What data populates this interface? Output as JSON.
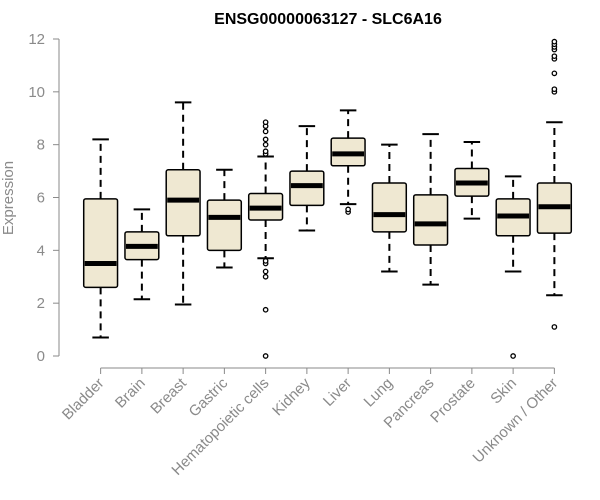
{
  "chart_data": {
    "type": "boxplot",
    "title": "ENSG00000063127 - SLC6A16",
    "xlabel": "",
    "ylabel": "Expression",
    "ylim": [
      0,
      12
    ],
    "yticks": [
      0,
      2,
      4,
      6,
      8,
      10,
      12
    ],
    "categories": [
      "Bladder",
      "Brain",
      "Breast",
      "Gastric",
      "Hematopoietic cells",
      "Kidney",
      "Liver",
      "Lung",
      "Pancreas",
      "Prostate",
      "Skin",
      "Unknown / Other"
    ],
    "boxes": [
      {
        "name": "Bladder",
        "whisker_low": 0.7,
        "q1": 2.6,
        "median": 3.5,
        "q3": 5.95,
        "whisker_high": 8.2,
        "outliers": []
      },
      {
        "name": "Brain",
        "whisker_low": 2.15,
        "q1": 3.65,
        "median": 4.15,
        "q3": 4.7,
        "whisker_high": 5.55,
        "outliers": []
      },
      {
        "name": "Breast",
        "whisker_low": 1.95,
        "q1": 4.55,
        "median": 5.9,
        "q3": 7.05,
        "whisker_high": 9.6,
        "outliers": []
      },
      {
        "name": "Gastric",
        "whisker_low": 3.35,
        "q1": 4.0,
        "median": 5.25,
        "q3": 5.9,
        "whisker_high": 7.05,
        "outliers": []
      },
      {
        "name": "Hematopoietic cells",
        "whisker_low": 3.7,
        "q1": 5.15,
        "median": 5.6,
        "q3": 6.15,
        "whisker_high": 7.55,
        "outliers": [
          0.0,
          1.75,
          3.0,
          3.2,
          3.5,
          3.6,
          7.65,
          7.75,
          8.0,
          8.2,
          8.5,
          8.7,
          8.85
        ]
      },
      {
        "name": "Kidney",
        "whisker_low": 4.75,
        "q1": 5.7,
        "median": 6.45,
        "q3": 7.0,
        "whisker_high": 8.7,
        "outliers": []
      },
      {
        "name": "Liver",
        "whisker_low": 5.75,
        "q1": 7.2,
        "median": 7.65,
        "q3": 8.25,
        "whisker_high": 9.3,
        "outliers": [
          5.45,
          5.55
        ]
      },
      {
        "name": "Lung",
        "whisker_low": 3.2,
        "q1": 4.7,
        "median": 5.35,
        "q3": 6.55,
        "whisker_high": 8.0,
        "outliers": []
      },
      {
        "name": "Pancreas",
        "whisker_low": 2.7,
        "q1": 4.2,
        "median": 5.0,
        "q3": 6.1,
        "whisker_high": 8.4,
        "outliers": []
      },
      {
        "name": "Prostate",
        "whisker_low": 5.2,
        "q1": 6.05,
        "median": 6.55,
        "q3": 7.1,
        "whisker_high": 8.1,
        "outliers": []
      },
      {
        "name": "Skin",
        "whisker_low": 3.2,
        "q1": 4.55,
        "median": 5.3,
        "q3": 5.95,
        "whisker_high": 6.8,
        "outliers": [
          0.0
        ]
      },
      {
        "name": "Unknown / Other",
        "whisker_low": 2.3,
        "q1": 4.65,
        "median": 5.65,
        "q3": 6.55,
        "whisker_high": 8.85,
        "outliers": [
          1.1,
          10.0,
          10.1,
          10.7,
          11.25,
          11.35,
          11.6,
          11.7,
          11.8,
          11.9
        ]
      }
    ],
    "colors": {
      "box_fill": "#efe8d2",
      "box_stroke": "#000000",
      "median": "#000000",
      "axis_text": "#8a8a8a",
      "axis_line": "#8a8a8a"
    }
  }
}
